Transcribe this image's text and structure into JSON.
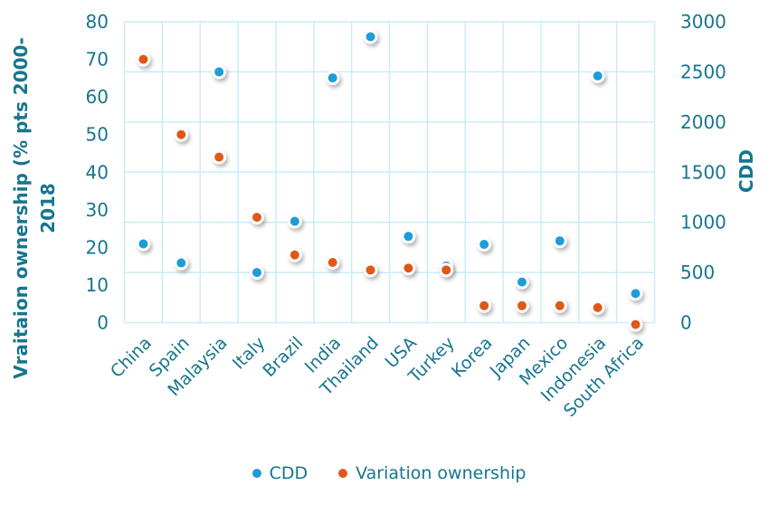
{
  "colors": {
    "text_teal": "#17758f",
    "grid": "#c9edf8",
    "cdd_blue": "#1f9cd8",
    "ownership_orange": "#e0571a",
    "background": "#ffffff"
  },
  "chart_data": {
    "type": "scatter",
    "title": "",
    "categories": [
      "China",
      "Spain",
      "Malaysia",
      "Italy",
      "Brazil",
      "India",
      "Thailand",
      "USA",
      "Turkey",
      "Korea",
      "Japan",
      "Mexico",
      "Indonesia",
      "South Africa"
    ],
    "series": [
      {
        "name": "CDD",
        "axis": "right",
        "color": "#1f9cd8",
        "values": [
          785,
          595,
          2500,
          500,
          1010,
          2440,
          2850,
          860,
          565,
          780,
          405,
          815,
          2460,
          290
        ]
      },
      {
        "name": "Variation ownership",
        "axis": "left",
        "color": "#e0571a",
        "values": [
          70,
          50,
          44,
          28,
          18,
          16,
          14,
          14.5,
          14,
          4.5,
          4.5,
          4.5,
          4,
          -0.5
        ]
      }
    ],
    "left_axis": {
      "title_lines": [
        "Vraitaion ownership (% pts 2000-",
        "2018"
      ],
      "min": 0,
      "max": 80,
      "step": 10,
      "tick_labels": [
        "0",
        "10",
        "20",
        "30",
        "40",
        "50",
        "60",
        "70",
        "80"
      ]
    },
    "right_axis": {
      "title": "CDD",
      "min": 0,
      "max": 3000,
      "step": 500,
      "tick_labels": [
        "0",
        "500",
        "1000",
        "1500",
        "2000",
        "2500",
        "3000"
      ]
    },
    "grid": true,
    "legend_position": "bottom"
  }
}
